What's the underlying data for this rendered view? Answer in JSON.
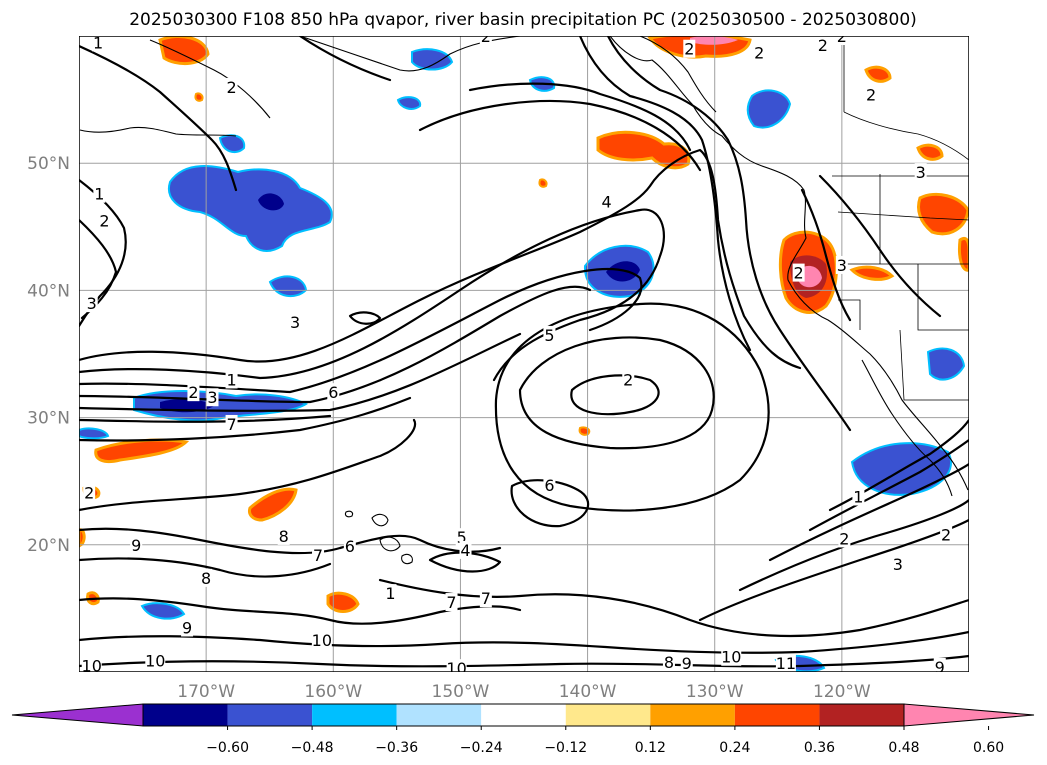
{
  "chart_data": {
    "type": "heatmap",
    "title": "2025030300 F108 850 hPa qvapor, river basin precipitation PC (2025030500 - 2025030800)",
    "map": {
      "lon_ticks": [
        "170°W",
        "160°W",
        "150°W",
        "140°W",
        "130°W",
        "120°W"
      ],
      "lon_values": [
        -170,
        -160,
        -150,
        -140,
        -130,
        -120
      ],
      "lat_ticks": [
        "50°N",
        "40°N",
        "30°N",
        "20°N"
      ],
      "lat_values": [
        50,
        40,
        30,
        20
      ],
      "lon_range": [
        -180,
        -110
      ],
      "lat_range": [
        10,
        60
      ],
      "grid": true
    },
    "colorbar": {
      "levels": [
        "−0.60",
        "−0.48",
        "−0.36",
        "−0.24",
        "−0.12",
        "0.12",
        "0.24",
        "0.36",
        "0.48",
        "0.60"
      ],
      "level_values": [
        -0.6,
        -0.48,
        -0.36,
        -0.24,
        -0.12,
        0.12,
        0.24,
        0.36,
        0.48,
        0.6
      ],
      "colors": [
        "#9b30d0",
        "#00008b",
        "#3a52d1",
        "#00bfff",
        "#b0e2ff",
        "#ffffff",
        "#ffe88c",
        "#ffa000",
        "#ff4500",
        "#b22222",
        "#ff85b0"
      ],
      "extend": "both"
    },
    "contour_labels": [
      {
        "text": "1",
        "lon": -178.5,
        "lat": 59.5
      },
      {
        "text": "2",
        "lon": -148,
        "lat": 60
      },
      {
        "text": "2",
        "lon": -168,
        "lat": 56
      },
      {
        "text": "1",
        "lon": -178.4,
        "lat": 47.6
      },
      {
        "text": "2",
        "lon": -178,
        "lat": 45.5
      },
      {
        "text": "3",
        "lon": -179,
        "lat": 39
      },
      {
        "text": "3",
        "lon": -163,
        "lat": 37.5
      },
      {
        "text": "4",
        "lon": -138.5,
        "lat": 47
      },
      {
        "text": "5",
        "lon": -143,
        "lat": 36.5
      },
      {
        "text": "1",
        "lon": -168,
        "lat": 33
      },
      {
        "text": "2",
        "lon": -171,
        "lat": 32
      },
      {
        "text": "3",
        "lon": -169.5,
        "lat": 31.6
      },
      {
        "text": "6",
        "lon": -160,
        "lat": 32
      },
      {
        "text": "7",
        "lon": -168,
        "lat": 29.5
      },
      {
        "text": "2",
        "lon": -136.8,
        "lat": 33
      },
      {
        "text": "6",
        "lon": -143,
        "lat": 24.7
      },
      {
        "text": "2",
        "lon": -132,
        "lat": 59
      },
      {
        "text": "2",
        "lon": -126.5,
        "lat": 58.7
      },
      {
        "text": "2",
        "lon": -121.5,
        "lat": 59.3
      },
      {
        "text": "2",
        "lon": -120,
        "lat": 60
      },
      {
        "text": "2",
        "lon": -117.7,
        "lat": 55.4
      },
      {
        "text": "3",
        "lon": -113.8,
        "lat": 49.3
      },
      {
        "text": "2",
        "lon": -123.4,
        "lat": 41.4
      },
      {
        "text": "3",
        "lon": -120,
        "lat": 42
      },
      {
        "text": "1",
        "lon": -118.7,
        "lat": 23.8
      },
      {
        "text": "2",
        "lon": -119.8,
        "lat": 20.5
      },
      {
        "text": "2",
        "lon": -111.8,
        "lat": 20.8
      },
      {
        "text": "3",
        "lon": -115.6,
        "lat": 18.5
      },
      {
        "text": "9",
        "lon": -175.5,
        "lat": 20
      },
      {
        "text": "8",
        "lon": -163.9,
        "lat": 20.7
      },
      {
        "text": "7",
        "lon": -161.2,
        "lat": 19.2
      },
      {
        "text": "6",
        "lon": -158.7,
        "lat": 19.9
      },
      {
        "text": "5",
        "lon": -149.9,
        "lat": 20.6
      },
      {
        "text": "4",
        "lon": -149.6,
        "lat": 19.6
      },
      {
        "text": "8",
        "lon": -170,
        "lat": 17.4
      },
      {
        "text": "1",
        "lon": -155.5,
        "lat": 16.2
      },
      {
        "text": "7",
        "lon": -150.7,
        "lat": 15.5
      },
      {
        "text": "7",
        "lon": -148,
        "lat": 15.8
      },
      {
        "text": "9",
        "lon": -171.5,
        "lat": 13.5
      },
      {
        "text": "10",
        "lon": -160.9,
        "lat": 12.5
      },
      {
        "text": "10",
        "lon": -179,
        "lat": 10.5
      },
      {
        "text": "10",
        "lon": -174,
        "lat": 10.9
      },
      {
        "text": "10",
        "lon": -150.3,
        "lat": 10.3
      },
      {
        "text": "8",
        "lon": -133.6,
        "lat": 10.8
      },
      {
        "text": "9",
        "lon": -132.2,
        "lat": 10.7
      },
      {
        "text": "10",
        "lon": -128.7,
        "lat": 11.2
      },
      {
        "text": "11",
        "lon": -124.4,
        "lat": 10.7
      },
      {
        "text": "9",
        "lon": -112.3,
        "lat": 10.4
      },
      {
        "text": "2",
        "lon": -179.2,
        "lat": 24.1
      }
    ]
  }
}
